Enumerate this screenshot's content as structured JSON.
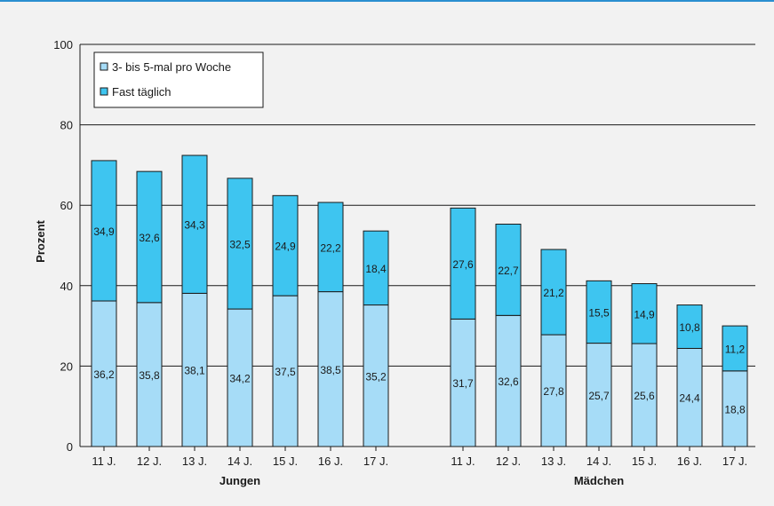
{
  "colors": {
    "lower": "#a6dcf7",
    "upper": "#3ec5f0",
    "stroke": "#1a1a1a",
    "gridline": "#1a1a1a",
    "background": "#f2f2f2",
    "accent_topline": "#2a8fd0"
  },
  "chart_data": {
    "type": "bar",
    "stacked": true,
    "ylabel": "Prozent",
    "ylim": [
      0,
      100
    ],
    "yticks": [
      0,
      20,
      40,
      60,
      80,
      100
    ],
    "grid": true,
    "legend_position": "top-left",
    "groups": [
      {
        "name": "Jungen",
        "categories": [
          "11 J.",
          "12 J.",
          "13 J.",
          "14 J.",
          "15 J.",
          "16 J.",
          "17 J."
        ]
      },
      {
        "name": "Mädchen",
        "categories": [
          "11 J.",
          "12 J.",
          "13 J.",
          "14 J.",
          "15 J.",
          "16 J.",
          "17 J."
        ]
      }
    ],
    "series": [
      {
        "name": "3- bis 5-mal pro Woche",
        "color": "#a6dcf7",
        "values": [
          36.2,
          35.8,
          38.1,
          34.2,
          37.5,
          38.5,
          35.2,
          31.7,
          32.6,
          27.8,
          25.7,
          25.6,
          24.4,
          18.8
        ],
        "labels": [
          "36,2",
          "35,8",
          "38,1",
          "34,2",
          "37,5",
          "38,5",
          "35,2",
          "31,7",
          "32,6",
          "27,8",
          "25,7",
          "25,6",
          "24,4",
          "18,8"
        ]
      },
      {
        "name": "Fast täglich",
        "color": "#3ec5f0",
        "values": [
          34.9,
          32.6,
          34.3,
          32.5,
          24.9,
          22.2,
          18.4,
          27.6,
          22.7,
          21.2,
          15.5,
          14.9,
          10.8,
          11.2
        ],
        "labels": [
          "34,9",
          "32,6",
          "34,3",
          "32,5",
          "24,9",
          "22,2",
          "18,4",
          "27,6",
          "22,7",
          "21,2",
          "15,5",
          "14,9",
          "10,8",
          "11,2"
        ]
      }
    ]
  }
}
